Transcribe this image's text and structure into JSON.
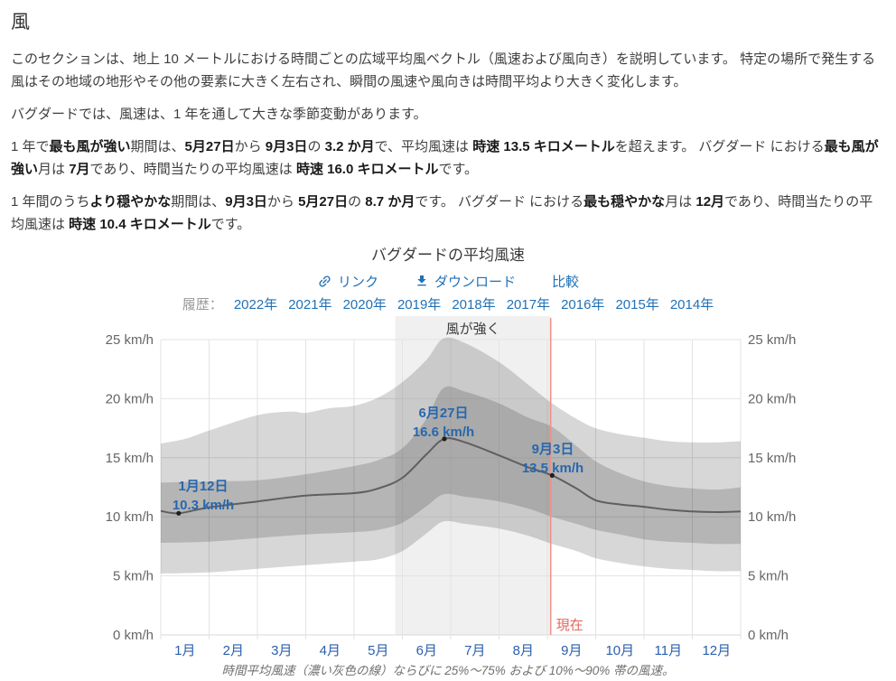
{
  "page": {
    "heading": "風",
    "paragraphs": [
      {
        "segments": [
          {
            "t": "このセクションは、地上 10 メートルにおける時間ごとの広域平均風ベクトル（風速および風向き）を説明しています。 特定の場所で発生する風はその地域の地形やその他の要素に大きく左右され、瞬間の風速や風向きは時間平均より大きく変化します。",
            "b": false
          }
        ]
      },
      {
        "segments": [
          {
            "t": "バグダードでは、風速は、1 年を通して大きな季節変動があります。",
            "b": false
          }
        ]
      },
      {
        "segments": [
          {
            "t": "1 年で",
            "b": false
          },
          {
            "t": "最も風が強い",
            "b": true
          },
          {
            "t": "期間は、",
            "b": false
          },
          {
            "t": "5月27日",
            "b": true
          },
          {
            "t": "から ",
            "b": false
          },
          {
            "t": "9月3日",
            "b": true
          },
          {
            "t": "の ",
            "b": false
          },
          {
            "t": "3.2 か月",
            "b": true
          },
          {
            "t": "で、平均風速は ",
            "b": false
          },
          {
            "t": "時速 13.5 キロメートル",
            "b": true
          },
          {
            "t": "を超えます。 バグダード における",
            "b": false
          },
          {
            "t": "最も風が強い",
            "b": true
          },
          {
            "t": "月は ",
            "b": false
          },
          {
            "t": "7月",
            "b": true
          },
          {
            "t": "であり、時間当たりの平均風速は ",
            "b": false
          },
          {
            "t": "時速 16.0 キロメートル",
            "b": true
          },
          {
            "t": "です。",
            "b": false
          }
        ]
      },
      {
        "segments": [
          {
            "t": "1 年間のうち",
            "b": false
          },
          {
            "t": "より穏やかな",
            "b": true
          },
          {
            "t": "期間は、",
            "b": false
          },
          {
            "t": "9月3日",
            "b": true
          },
          {
            "t": "から ",
            "b": false
          },
          {
            "t": "5月27日",
            "b": true
          },
          {
            "t": "の ",
            "b": false
          },
          {
            "t": "8.7 か月",
            "b": true
          },
          {
            "t": "です。 バグダード における",
            "b": false
          },
          {
            "t": "最も穏やかな",
            "b": true
          },
          {
            "t": "月は ",
            "b": false
          },
          {
            "t": "12月",
            "b": true
          },
          {
            "t": "であり、時間当たりの平均風速は ",
            "b": false
          },
          {
            "t": "時速 10.4 キロメートル",
            "b": true
          },
          {
            "t": "です。",
            "b": false
          }
        ]
      }
    ]
  },
  "chart": {
    "title": "バグダードの平均風速",
    "actions": [
      {
        "label": "リンク",
        "icon": "link-icon"
      },
      {
        "label": "ダウンロード",
        "icon": "download-icon"
      },
      {
        "label": "比較",
        "icon": null
      }
    ],
    "history_label": "履歴：",
    "years": [
      "2022年",
      "2021年",
      "2020年",
      "2019年",
      "2018年",
      "2017年",
      "2016年",
      "2015年",
      "2014年"
    ],
    "caption": "時間平均風速（濃い灰色の線）ならびに 25%〜75% および 10%〜90% 帯の風速。"
  },
  "chart_data": {
    "type": "area",
    "title": "バグダードの平均風速",
    "y_unit": "km/h",
    "ylim": [
      0,
      25
    ],
    "y_ticks": [
      0,
      5,
      10,
      15,
      20,
      25
    ],
    "y_tick_suffix": " km/h",
    "grid": true,
    "month_labels": [
      "1月",
      "2月",
      "3月",
      "4月",
      "5月",
      "6月",
      "7月",
      "8月",
      "9月",
      "10月",
      "11月",
      "12月"
    ],
    "series": [
      {
        "name": "mean",
        "points": [
          [
            0,
            10.5
          ],
          [
            0.37,
            10.3
          ],
          [
            1,
            10.8
          ],
          [
            2,
            11.3
          ],
          [
            3,
            11.8
          ],
          [
            4,
            12.0
          ],
          [
            4.5,
            12.4
          ],
          [
            5,
            13.3
          ],
          [
            5.5,
            15.3
          ],
          [
            5.87,
            16.6
          ],
          [
            6.3,
            16.3
          ],
          [
            7,
            15.2
          ],
          [
            7.6,
            14.2
          ],
          [
            8.1,
            13.5
          ],
          [
            8.6,
            12.4
          ],
          [
            9,
            11.4
          ],
          [
            9.5,
            11.05
          ],
          [
            10,
            10.85
          ],
          [
            10.5,
            10.6
          ],
          [
            11,
            10.45
          ],
          [
            11.5,
            10.4
          ],
          [
            12,
            10.45
          ]
        ]
      },
      {
        "name": "p75",
        "points": [
          [
            0,
            12.9
          ],
          [
            1,
            13.0
          ],
          [
            2,
            13.1
          ],
          [
            3,
            13.6
          ],
          [
            4,
            14.3
          ],
          [
            4.5,
            14.8
          ],
          [
            5,
            15.8
          ],
          [
            5.5,
            18.3
          ],
          [
            5.85,
            20.9
          ],
          [
            6.3,
            20.6
          ],
          [
            7,
            19.6
          ],
          [
            7.6,
            18.4
          ],
          [
            8.1,
            17.6
          ],
          [
            8.6,
            16.0
          ],
          [
            9,
            14.7
          ],
          [
            9.5,
            13.7
          ],
          [
            10,
            13.0
          ],
          [
            10.5,
            12.6
          ],
          [
            11,
            12.4
          ],
          [
            11.5,
            12.3
          ],
          [
            12,
            12.5
          ]
        ]
      },
      {
        "name": "p25",
        "points": [
          [
            0,
            7.8
          ],
          [
            1,
            7.9
          ],
          [
            2,
            8.2
          ],
          [
            3,
            8.5
          ],
          [
            4,
            8.7
          ],
          [
            4.5,
            8.9
          ],
          [
            5,
            9.5
          ],
          [
            5.5,
            10.9
          ],
          [
            5.85,
            11.9
          ],
          [
            6.3,
            11.7
          ],
          [
            7,
            11.3
          ],
          [
            7.6,
            10.7
          ],
          [
            8.1,
            10.0
          ],
          [
            8.6,
            9.4
          ],
          [
            9,
            8.9
          ],
          [
            9.5,
            8.5
          ],
          [
            10,
            8.1
          ],
          [
            10.5,
            7.9
          ],
          [
            11,
            7.8
          ],
          [
            11.5,
            7.7
          ],
          [
            12,
            7.7
          ]
        ]
      },
      {
        "name": "p90",
        "points": [
          [
            0,
            16.2
          ],
          [
            0.5,
            16.6
          ],
          [
            1,
            17.3
          ],
          [
            2,
            18.6
          ],
          [
            2.7,
            18.9
          ],
          [
            3,
            18.8
          ],
          [
            3.5,
            19.2
          ],
          [
            4,
            19.4
          ],
          [
            4.5,
            20.1
          ],
          [
            5,
            21.4
          ],
          [
            5.5,
            23.3
          ],
          [
            5.85,
            25.1
          ],
          [
            6.3,
            24.7
          ],
          [
            7,
            23.1
          ],
          [
            7.6,
            21.2
          ],
          [
            8.1,
            19.6
          ],
          [
            8.6,
            18.3
          ],
          [
            9,
            17.5
          ],
          [
            9.5,
            17.0
          ],
          [
            10,
            16.7
          ],
          [
            10.5,
            16.4
          ],
          [
            11,
            16.3
          ],
          [
            11.5,
            16.3
          ],
          [
            12,
            16.4
          ]
        ]
      },
      {
        "name": "p10",
        "points": [
          [
            0,
            5.2
          ],
          [
            1,
            5.3
          ],
          [
            2,
            5.6
          ],
          [
            3,
            5.9
          ],
          [
            4,
            6.2
          ],
          [
            4.5,
            6.4
          ],
          [
            5,
            7.1
          ],
          [
            5.5,
            8.6
          ],
          [
            5.85,
            9.6
          ],
          [
            6.3,
            9.4
          ],
          [
            7,
            9.0
          ],
          [
            7.6,
            8.4
          ],
          [
            8.1,
            7.7
          ],
          [
            8.6,
            7.1
          ],
          [
            9,
            6.5
          ],
          [
            9.5,
            6.1
          ],
          [
            10,
            5.8
          ],
          [
            10.5,
            5.6
          ],
          [
            11,
            5.5
          ],
          [
            11.5,
            5.4
          ],
          [
            12,
            5.4
          ]
        ]
      }
    ],
    "bands": [
      {
        "upper": "p90",
        "lower": "p10",
        "label": "10%〜90%"
      },
      {
        "upper": "p75",
        "lower": "p25",
        "label": "25%〜75%"
      }
    ],
    "windy_season": {
      "label": "風が強く",
      "start_date": "5月27日",
      "end_date": "9月3日",
      "start_month": 4.85,
      "end_month": 8.07
    },
    "now_line": {
      "label": "現在",
      "month": 8.07
    },
    "annotations": [
      {
        "line1": "1月12日",
        "line2": "10.3 km/h",
        "month": 0.37,
        "value": 10.3,
        "text_x": 225,
        "text_y1": 195,
        "text_y2": 216
      },
      {
        "line1": "6月27日",
        "line2": "16.6 km/h",
        "month": 5.87,
        "value": 16.6,
        "text_x": 491,
        "text_y1": 114,
        "text_y2": 135
      },
      {
        "line1": "9月3日",
        "line2": "13.5 km/h",
        "month": 8.1,
        "value": 13.5,
        "text_x": 612,
        "text_y1": 154,
        "text_y2": 175
      }
    ],
    "legend_position": "none",
    "colors": {
      "band_fill": "rgba(0,0,0,0.155)",
      "mean_line": "#5f5f5f",
      "dot": "#1f1f1f",
      "highlight": "#f0f0f0",
      "highlight_text": "#3c3c3c",
      "now_line": "#ef9089",
      "now_label": "#e4665c",
      "annotation": "#2767ae",
      "axis_label": "#666666",
      "month_label": "#2b5fad",
      "grid": "#e3e3e3",
      "axis_line": "#d8d8d8"
    }
  }
}
